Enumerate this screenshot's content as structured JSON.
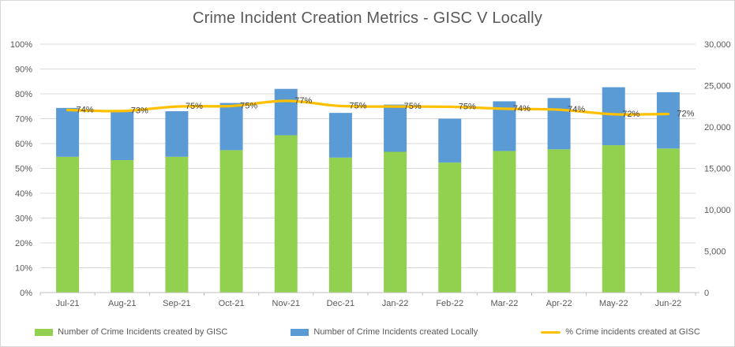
{
  "chart_data": {
    "type": "combo",
    "subtypes": [
      "stacked-bar",
      "line"
    ],
    "title": "Crime Incident Creation Metrics - GISC V Locally",
    "categories": [
      "Jul-21",
      "Aug-21",
      "Sep-21",
      "Oct-21",
      "Nov-21",
      "Dec-21",
      "Jan-22",
      "Feb-22",
      "Mar-22",
      "Apr-22",
      "May-22",
      "Jun-22"
    ],
    "series": [
      {
        "name": "Number of Crime Incidents created by GISC",
        "type": "bar",
        "stack": "counts",
        "axis": "right",
        "color": "#92D050",
        "values": [
          16400,
          16000,
          16400,
          17200,
          19000,
          16300,
          17000,
          15700,
          17100,
          17300,
          17800,
          17400
        ]
      },
      {
        "name": "Number of Crime Incidents created Locally",
        "type": "bar",
        "stack": "counts",
        "axis": "right",
        "color": "#5B9BD5",
        "values": [
          5900,
          5900,
          5500,
          5700,
          5600,
          5400,
          5700,
          5300,
          6000,
          6200,
          7000,
          6800
        ]
      },
      {
        "name": "% Crime incidents created at GISC",
        "type": "line",
        "axis": "left",
        "color": "#FFC000",
        "values": [
          73.5,
          73.1,
          74.9,
          75.1,
          77.2,
          75.1,
          74.9,
          74.8,
          74.0,
          73.6,
          71.8,
          71.9
        ],
        "point_labels": [
          "74%",
          "73%",
          "75%",
          "75%",
          "77%",
          "75%",
          "75%",
          "75%",
          "74%",
          "74%",
          "72%",
          "72%"
        ]
      }
    ],
    "left_axis": {
      "min": 0,
      "max": 100,
      "unit": "%",
      "ticks": [
        "0%",
        "10%",
        "20%",
        "30%",
        "40%",
        "50%",
        "60%",
        "70%",
        "80%",
        "90%",
        "100%"
      ]
    },
    "right_axis": {
      "min": 0,
      "max": 30000,
      "ticks": [
        "0",
        "5,000",
        "10,000",
        "15,000",
        "20,000",
        "25,000",
        "30,000"
      ]
    },
    "legend_position": "bottom",
    "grid": true
  },
  "colors": {
    "gisc_green": "#92D050",
    "local_blue": "#5B9BD5",
    "line_gold": "#FFC000",
    "gridline": "#D9D9D9",
    "axis_line": "#BFBFBF",
    "axis_text": "#595959",
    "data_label_text": "#404040",
    "title_text": "#595959"
  }
}
